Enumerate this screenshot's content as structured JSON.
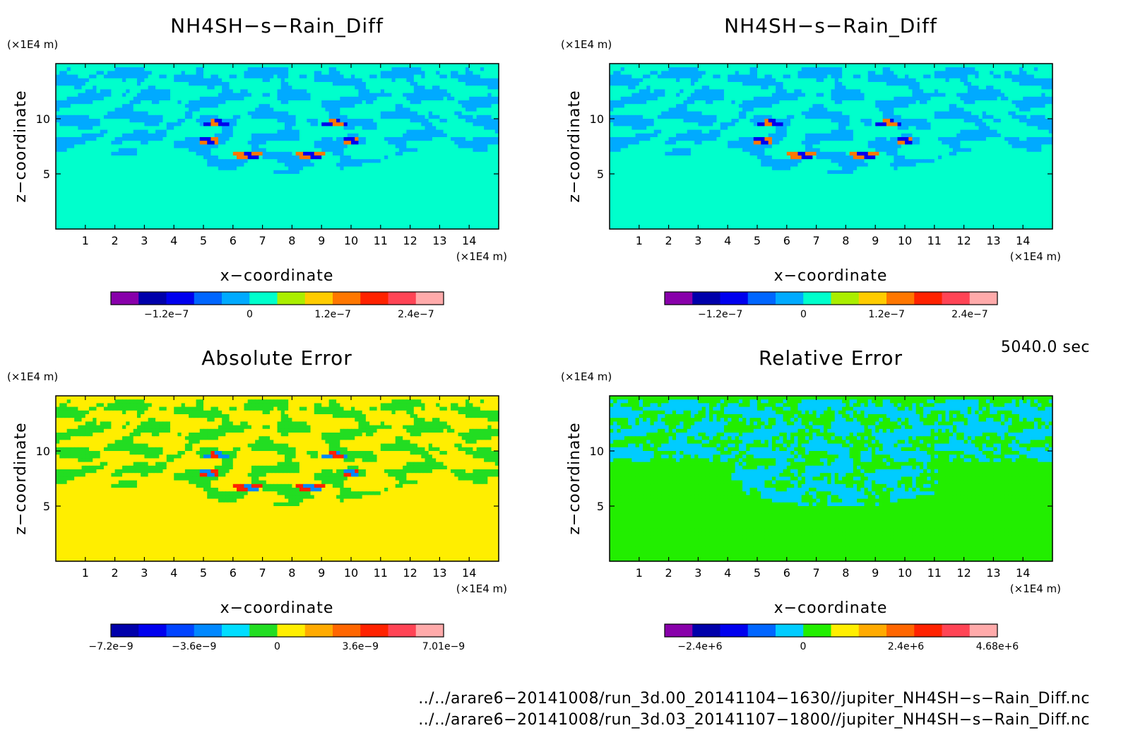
{
  "chart_data": [
    {
      "type": "heatmap",
      "title": "NH4SH−s−Rain_Diff",
      "xlabel": "x−coordinate",
      "ylabel": "z−coordinate",
      "x_unit": "(×1E4 m)",
      "y_unit": "(×1E4 m)",
      "xlim": [
        0,
        15
      ],
      "ylim": [
        0,
        15
      ],
      "x_ticks": [
        1,
        2,
        3,
        4,
        5,
        6,
        7,
        8,
        9,
        10,
        11,
        12,
        13,
        14
      ],
      "y_ticks": [
        5,
        10
      ],
      "pattern": "diff",
      "colorbar": {
        "colors": [
          "#8800aa",
          "#0000aa",
          "#0000ee",
          "#0066ff",
          "#00aaff",
          "#00ffcc",
          "#aaee00",
          "#ffcc00",
          "#ff7700",
          "#ff2200",
          "#ff4455",
          "#ffaaaa"
        ],
        "labels": [
          {
            "text": "−1.2e−7",
            "pos": 0.167
          },
          {
            "text": "0",
            "pos": 0.417
          },
          {
            "text": "1.2e−7",
            "pos": 0.667
          },
          {
            "text": "2.4e−7",
            "pos": 0.917
          }
        ]
      }
    },
    {
      "type": "heatmap",
      "title": "NH4SH−s−Rain_Diff",
      "xlabel": "x−coordinate",
      "ylabel": "z−coordinate",
      "x_unit": "(×1E4 m)",
      "y_unit": "(×1E4 m)",
      "xlim": [
        0,
        15
      ],
      "ylim": [
        0,
        15
      ],
      "x_ticks": [
        1,
        2,
        3,
        4,
        5,
        6,
        7,
        8,
        9,
        10,
        11,
        12,
        13,
        14
      ],
      "y_ticks": [
        5,
        10
      ],
      "pattern": "diff",
      "colorbar": {
        "colors": [
          "#8800aa",
          "#0000aa",
          "#0000ee",
          "#0066ff",
          "#00aaff",
          "#00ffcc",
          "#aaee00",
          "#ffcc00",
          "#ff7700",
          "#ff2200",
          "#ff4455",
          "#ffaaaa"
        ],
        "labels": [
          {
            "text": "−1.2e−7",
            "pos": 0.167
          },
          {
            "text": "0",
            "pos": 0.417
          },
          {
            "text": "1.2e−7",
            "pos": 0.667
          },
          {
            "text": "2.4e−7",
            "pos": 0.917
          }
        ]
      }
    },
    {
      "type": "heatmap",
      "title": "Absolute Error",
      "xlabel": "x−coordinate",
      "ylabel": "z−coordinate",
      "x_unit": "(×1E4 m)",
      "y_unit": "(×1E4 m)",
      "xlim": [
        0,
        15
      ],
      "ylim": [
        0,
        15
      ],
      "x_ticks": [
        1,
        2,
        3,
        4,
        5,
        6,
        7,
        8,
        9,
        10,
        11,
        12,
        13,
        14
      ],
      "y_ticks": [
        5,
        10
      ],
      "pattern": "abs",
      "colorbar": {
        "colors": [
          "#0000aa",
          "#0000ee",
          "#0044ff",
          "#0088ff",
          "#00ddff",
          "#22dd22",
          "#ffee00",
          "#ffaa00",
          "#ff6600",
          "#ff2200",
          "#ff4455",
          "#ffaaaa"
        ],
        "labels": [
          {
            "text": "−7.2e−9",
            "pos": 0.0
          },
          {
            "text": "−3.6e−9",
            "pos": 0.25
          },
          {
            "text": "0",
            "pos": 0.5
          },
          {
            "text": "3.6e−9",
            "pos": 0.75
          },
          {
            "text": "7.01e−9",
            "pos": 1.0
          }
        ]
      }
    },
    {
      "type": "heatmap",
      "title": "Relative Error",
      "xlabel": "x−coordinate",
      "ylabel": "z−coordinate",
      "x_unit": "(×1E4 m)",
      "y_unit": "(×1E4 m)",
      "xlim": [
        0,
        15
      ],
      "ylim": [
        0,
        15
      ],
      "x_ticks": [
        1,
        2,
        3,
        4,
        5,
        6,
        7,
        8,
        9,
        10,
        11,
        12,
        13,
        14
      ],
      "y_ticks": [
        5,
        10
      ],
      "pattern": "rel",
      "colorbar": {
        "colors": [
          "#8800aa",
          "#0000aa",
          "#0000ee",
          "#0066ff",
          "#00ccff",
          "#22ee00",
          "#ffee00",
          "#ffaa00",
          "#ff6600",
          "#ff2200",
          "#ff4455",
          "#ffaaaa"
        ],
        "labels": [
          {
            "text": "−2.4e+6",
            "pos": 0.106
          },
          {
            "text": "0",
            "pos": 0.416
          },
          {
            "text": "2.4e+6",
            "pos": 0.725
          },
          {
            "text": "4.68e+6",
            "pos": 1.0
          }
        ]
      }
    }
  ],
  "time_label": "5040.0 sec",
  "footer": {
    "line1": "../../arare6−20141008/run_3d.00_20141104−1630//jupiter_NH4SH−s−Rain_Diff.nc",
    "line2": "../../arare6−20141008/run_3d.03_20141107−1800//jupiter_NH4SH−s−Rain_Diff.nc"
  }
}
